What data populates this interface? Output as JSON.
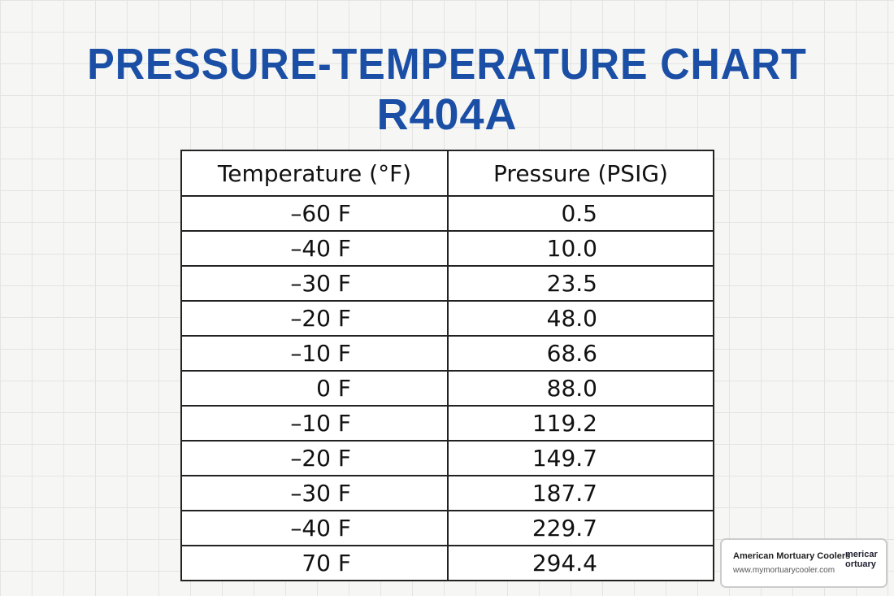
{
  "header": {
    "title": "PRESSURE-TEMPERATURE CHART",
    "subtitle": "R404A"
  },
  "table": {
    "columns": [
      "Temperature (°F)",
      "Pressure (PSIG)"
    ],
    "rows": [
      [
        "–60 F",
        "0.5"
      ],
      [
        "–40 F",
        "10.0"
      ],
      [
        "–30 F",
        "23.5"
      ],
      [
        "–20 F",
        "48.0"
      ],
      [
        "–10 F",
        "68.6"
      ],
      [
        "0 F",
        "88.0"
      ],
      [
        "–10 F",
        "119.2"
      ],
      [
        "–20 F",
        "149.7"
      ],
      [
        "–30 F",
        "187.7"
      ],
      [
        "–40 F",
        "229.7"
      ],
      [
        "70 F",
        "294.4"
      ]
    ]
  },
  "badge": {
    "name": "American Mortuary Coolers",
    "url": "www.mymortuarycooler.com",
    "logo_lines": [
      "mericar",
      "ortuary"
    ]
  }
}
